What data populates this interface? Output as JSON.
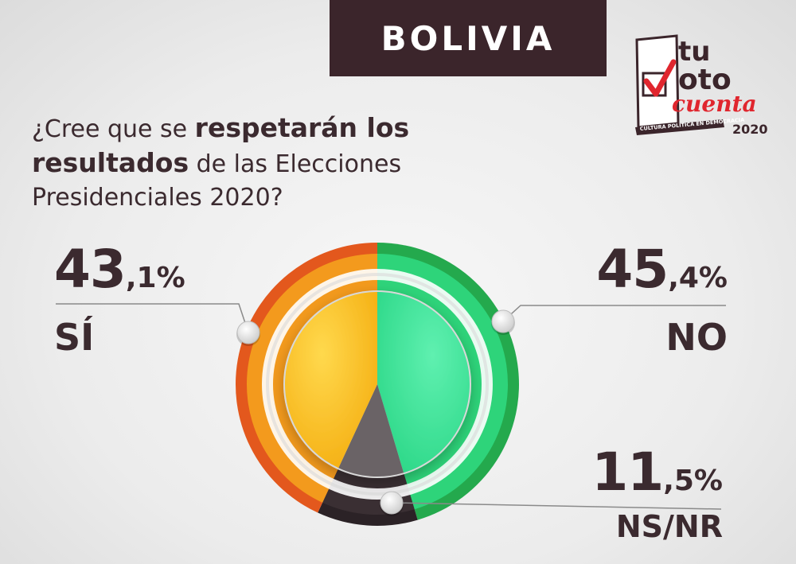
{
  "header": {
    "country": "BOLIVIA"
  },
  "question": {
    "part1": "¿Cree que se ",
    "bold1": "respetarán los",
    "bold2": "resultados",
    "part2": " de las Elecciones",
    "line3": "Presidenciales 2020?"
  },
  "logo": {
    "line1": "tu",
    "line2": "oto",
    "line3": "cuenta",
    "tagline": "CULTURA POLÍTICA EN DEMOCRACIA",
    "year": "2020"
  },
  "labels": {
    "si": {
      "int": "43",
      "dec": ",1%",
      "label": "SÍ"
    },
    "no": {
      "int": "45",
      "dec": ",4%",
      "label": "NO"
    },
    "ns": {
      "int": "11",
      "dec": ",5%",
      "label": "NS/NR"
    }
  },
  "colors": {
    "si_inner": "#fbc52a",
    "si_ring": "#f39a1d",
    "si_rim": "#e3581d",
    "no_inner": "#3fe39b",
    "no_ring": "#2ed47a",
    "no_rim": "#24a94d",
    "ns_inner": "#6a6466",
    "ns_ring": "#3a2f33",
    "ns_rim": "#2b2226",
    "banner": "#3b252b",
    "text": "#3b2a2f"
  },
  "chart_data": {
    "type": "pie",
    "categories": [
      "SÍ",
      "NO",
      "NS/NR"
    ],
    "values": [
      43.1,
      45.4,
      11.5
    ],
    "unit": "%"
  }
}
